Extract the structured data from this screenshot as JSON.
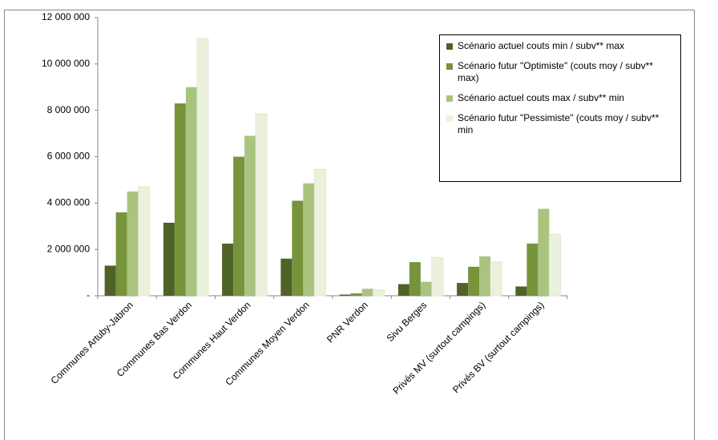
{
  "chart_data": {
    "type": "bar",
    "categories": [
      "Communes Artuby-Jabron",
      "Communes Bas Verdon",
      "Communes Haut Verdon",
      "Communes Moyen Verdon",
      "PNR Verdon",
      "Sivu Berges",
      "Privés MV (surtout campings)",
      "Privés BV (surtout campings)"
    ],
    "series": [
      {
        "name": "Scénario actuel couts min / subv** max",
        "color": "#4f6228",
        "values": [
          1300000,
          3150000,
          2250000,
          1600000,
          50000,
          500000,
          550000,
          400000
        ]
      },
      {
        "name": "Scénario futur \"Optimiste\" (couts moy / subv** max)",
        "color": "#77933c",
        "values": [
          3600000,
          8300000,
          6000000,
          4100000,
          100000,
          1450000,
          1250000,
          2250000
        ]
      },
      {
        "name": "Scénario actuel couts max / subv** min",
        "color": "#a9c47f",
        "values": [
          4500000,
          9000000,
          6900000,
          4850000,
          300000,
          600000,
          1700000,
          3750000
        ]
      },
      {
        "name": "Scénario futur \"Pessimiste\" (couts moy / subv** min",
        "color": "#ebf1dd",
        "values": [
          4700000,
          11100000,
          7850000,
          5450000,
          250000,
          1650000,
          1450000,
          2650000
        ]
      }
    ],
    "ylim": [
      0,
      12000000
    ],
    "yticks": [
      {
        "value": 0,
        "label": "-"
      },
      {
        "value": 2000000,
        "label": "2 000 000"
      },
      {
        "value": 4000000,
        "label": "4 000 000"
      },
      {
        "value": 6000000,
        "label": "6 000 000"
      },
      {
        "value": 8000000,
        "label": "8 000 000"
      },
      {
        "value": 10000000,
        "label": "10 000 000"
      },
      {
        "value": 12000000,
        "label": "12 000 000"
      }
    ],
    "grid": false
  }
}
